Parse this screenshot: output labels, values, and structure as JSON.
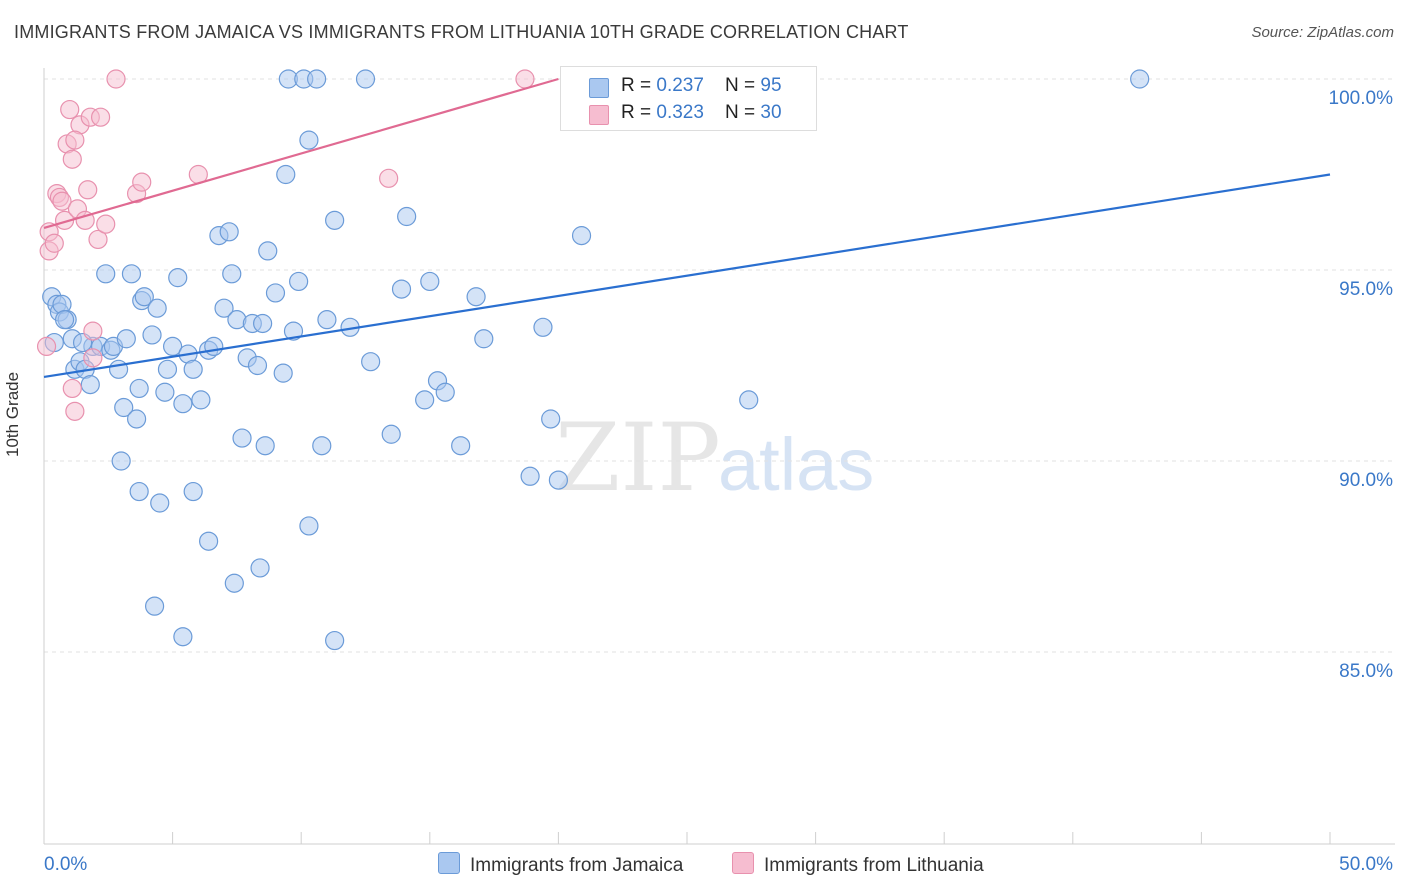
{
  "title": "IMMIGRANTS FROM JAMAICA VS IMMIGRANTS FROM LITHUANIA 10TH GRADE CORRELATION CHART",
  "source": "Source: ZipAtlas.com",
  "watermark": {
    "zip": "ZIP",
    "atlas": "atlas"
  },
  "legend": {
    "rows": [
      {
        "r_label": "R = ",
        "r_value": "0.237",
        "n_label": "N = ",
        "n_value": "95"
      },
      {
        "r_label": "R = ",
        "r_value": "0.323",
        "n_label": "N = ",
        "n_value": "30"
      }
    ]
  },
  "colors": {
    "jamaica_fill": "#aac8f0",
    "jamaica_stroke": "#6b9bd8",
    "jamaica_line": "#2a6fd0",
    "lithuania_fill": "#f6bdd0",
    "lithuania_stroke": "#e891ae",
    "lithuania_line": "#e06a92",
    "grid": "#e2e2e2",
    "tick_label": "#3a78c8"
  },
  "chart_data": {
    "type": "scatter",
    "title": "IMMIGRANTS FROM JAMAICA VS IMMIGRANTS FROM LITHUANIA 10TH GRADE CORRELATION CHART",
    "xlabel": "",
    "ylabel": "10th Grade",
    "xlim": [
      0,
      50
    ],
    "ylim": [
      80.5,
      100.5
    ],
    "x_tick_labels": [
      "0.0%",
      "50.0%"
    ],
    "y_ticks": [
      {
        "value": 85,
        "label": "85.0%"
      },
      {
        "value": 90,
        "label": "90.0%"
      },
      {
        "value": 95,
        "label": "95.0%"
      },
      {
        "value": 100,
        "label": "100.0%"
      }
    ],
    "series": [
      {
        "name": "Immigrants from Jamaica",
        "color": "#aac8f0",
        "trend": {
          "x": [
            0,
            50
          ],
          "y": [
            92.2,
            97.5
          ]
        },
        "points": [
          [
            0.3,
            94.3
          ],
          [
            0.5,
            94.1
          ],
          [
            0.6,
            93.9
          ],
          [
            0.7,
            94.1
          ],
          [
            0.9,
            93.7
          ],
          [
            0.4,
            93.1
          ],
          [
            1.1,
            93.2
          ],
          [
            1.2,
            92.4
          ],
          [
            1.4,
            92.6
          ],
          [
            1.6,
            92.4
          ],
          [
            1.8,
            92.0
          ],
          [
            1.9,
            93.0
          ],
          [
            2.2,
            93.0
          ],
          [
            2.4,
            94.9
          ],
          [
            2.6,
            92.9
          ],
          [
            2.9,
            92.4
          ],
          [
            2.7,
            93.0
          ],
          [
            3.1,
            91.4
          ],
          [
            3.2,
            93.2
          ],
          [
            3.0,
            90.0
          ],
          [
            3.4,
            94.9
          ],
          [
            3.6,
            91.1
          ],
          [
            3.7,
            91.9
          ],
          [
            3.8,
            94.2
          ],
          [
            3.9,
            94.3
          ],
          [
            4.2,
            93.3
          ],
          [
            4.4,
            94.0
          ],
          [
            4.7,
            91.8
          ],
          [
            4.8,
            92.4
          ],
          [
            5.0,
            93.0
          ],
          [
            5.2,
            94.8
          ],
          [
            5.4,
            91.5
          ],
          [
            5.6,
            92.8
          ],
          [
            5.8,
            92.4
          ],
          [
            6.1,
            91.6
          ],
          [
            6.4,
            92.9
          ],
          [
            6.6,
            93.0
          ],
          [
            6.8,
            95.9
          ],
          [
            7.0,
            94.0
          ],
          [
            7.2,
            96.0
          ],
          [
            7.3,
            94.9
          ],
          [
            7.5,
            93.7
          ],
          [
            7.7,
            90.6
          ],
          [
            7.9,
            92.7
          ],
          [
            8.1,
            93.6
          ],
          [
            8.3,
            92.5
          ],
          [
            8.5,
            93.6
          ],
          [
            8.6,
            90.4
          ],
          [
            8.7,
            95.5
          ],
          [
            9.0,
            94.4
          ],
          [
            9.3,
            92.3
          ],
          [
            9.4,
            97.5
          ],
          [
            9.5,
            100.0
          ],
          [
            9.7,
            93.4
          ],
          [
            9.9,
            94.7
          ],
          [
            10.1,
            100.0
          ],
          [
            10.3,
            98.4
          ],
          [
            10.6,
            100.0
          ],
          [
            10.8,
            90.4
          ],
          [
            11.0,
            93.7
          ],
          [
            11.3,
            96.3
          ],
          [
            11.9,
            93.5
          ],
          [
            12.5,
            100.0
          ],
          [
            12.7,
            92.6
          ],
          [
            13.5,
            90.7
          ],
          [
            13.9,
            94.5
          ],
          [
            14.1,
            96.4
          ],
          [
            14.8,
            91.6
          ],
          [
            15.0,
            94.7
          ],
          [
            15.3,
            92.1
          ],
          [
            15.6,
            91.8
          ],
          [
            16.2,
            90.4
          ],
          [
            16.8,
            94.3
          ],
          [
            17.1,
            93.2
          ],
          [
            18.9,
            89.6
          ],
          [
            19.4,
            93.5
          ],
          [
            19.7,
            91.1
          ],
          [
            20.0,
            89.5
          ],
          [
            20.9,
            95.9
          ],
          [
            20.6,
            100.0
          ],
          [
            26.1,
            100.0
          ],
          [
            27.4,
            91.6
          ],
          [
            42.6,
            100.0
          ],
          [
            3.7,
            89.2
          ],
          [
            4.5,
            88.9
          ],
          [
            5.8,
            89.2
          ],
          [
            6.4,
            87.9
          ],
          [
            7.4,
            86.8
          ],
          [
            8.4,
            87.2
          ],
          [
            10.3,
            88.3
          ],
          [
            4.3,
            86.2
          ],
          [
            5.4,
            85.4
          ],
          [
            11.3,
            85.3
          ],
          [
            0.8,
            93.7
          ],
          [
            1.5,
            93.1
          ]
        ]
      },
      {
        "name": "Immigrants from Lithuania",
        "color": "#f6bdd0",
        "trend": {
          "x": [
            0,
            20.0
          ],
          "y": [
            96.1,
            100.0
          ]
        },
        "points": [
          [
            0.1,
            93.0
          ],
          [
            0.2,
            96.0
          ],
          [
            0.2,
            95.5
          ],
          [
            0.4,
            95.7
          ],
          [
            0.5,
            97.0
          ],
          [
            0.6,
            96.9
          ],
          [
            0.7,
            96.8
          ],
          [
            0.8,
            96.3
          ],
          [
            0.9,
            98.3
          ],
          [
            1.0,
            99.2
          ],
          [
            1.1,
            97.9
          ],
          [
            1.3,
            96.6
          ],
          [
            1.4,
            98.8
          ],
          [
            1.6,
            96.3
          ],
          [
            1.7,
            97.1
          ],
          [
            1.8,
            99.0
          ],
          [
            2.1,
            95.8
          ],
          [
            2.2,
            99.0
          ],
          [
            2.4,
            96.2
          ],
          [
            2.8,
            100.0
          ],
          [
            3.6,
            97.0
          ],
          [
            3.8,
            97.3
          ],
          [
            6.0,
            97.5
          ],
          [
            13.4,
            97.4
          ],
          [
            18.7,
            100.0
          ],
          [
            1.1,
            91.9
          ],
          [
            1.2,
            91.3
          ],
          [
            1.9,
            93.4
          ],
          [
            1.9,
            92.7
          ],
          [
            1.2,
            98.4
          ]
        ]
      }
    ]
  }
}
